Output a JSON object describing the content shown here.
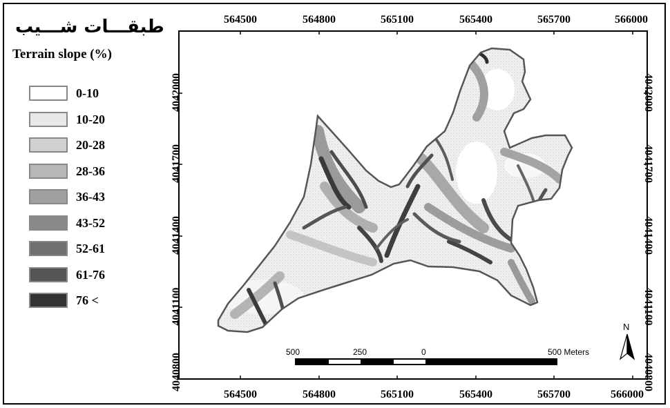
{
  "title_fa": "طبقـــات شـــيب",
  "legend": {
    "title": "Terrain slope (%)",
    "items": [
      {
        "label": "0-10",
        "color": "#ffffff"
      },
      {
        "label": "10-20",
        "color": "#e8e8e8"
      },
      {
        "label": "20-28",
        "color": "#d0d0d0"
      },
      {
        "label": "28-36",
        "color": "#b8b8b8"
      },
      {
        "label": "36-43",
        "color": "#a0a0a0"
      },
      {
        "label": "43-52",
        "color": "#8a8a8a"
      },
      {
        "label": "52-61",
        "color": "#707070"
      },
      {
        "label": "61-76",
        "color": "#555555"
      },
      {
        "label": "76 <",
        "color": "#333333"
      }
    ]
  },
  "axes": {
    "x_ticks": [
      "564500",
      "564800",
      "565100",
      "565400",
      "565700",
      "566000"
    ],
    "y_ticks": [
      "4042000",
      "4041700",
      "4041400",
      "4041100",
      "4040800"
    ]
  },
  "scale_bar": {
    "labels": [
      "500",
      "250",
      "0",
      "500 Meters"
    ]
  },
  "north_arrow": {
    "label": "N"
  },
  "colors": {
    "outline": "#555555",
    "frame": "#000000"
  }
}
